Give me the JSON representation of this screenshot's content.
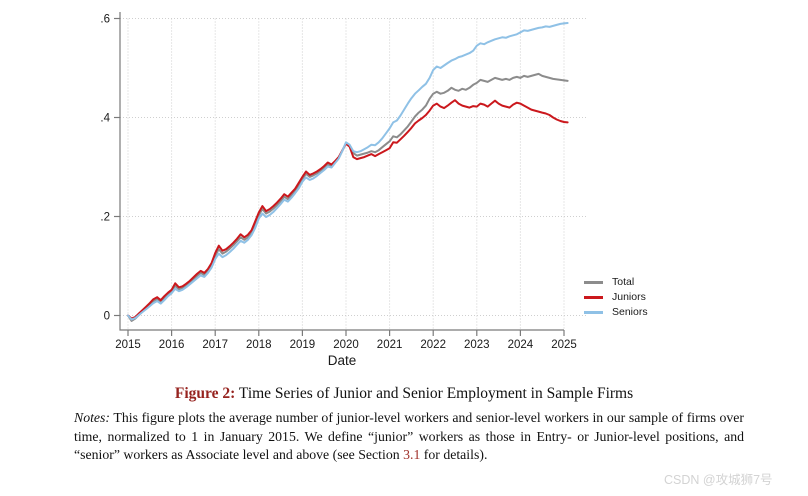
{
  "figure": {
    "caption_label": "Figure 2:",
    "caption_title": " Time Series of Junior and Senior Employment in Sample Firms",
    "notes_label": "Notes:",
    "notes_body1": " This figure plots the average number of junior-level workers and senior-level workers in our sample of firms over time, normalized to 1 in January 2015. We define “junior” workers as those in Entry- or Junior-level positions, and “senior” workers as Associate level and above (see Section ",
    "notes_link": "3.1",
    "notes_body2": " for details)."
  },
  "watermark": {
    "text": "CSDN @攻城狮7号"
  },
  "chart_data": {
    "type": "line",
    "title": "",
    "xlabel": "Date",
    "ylabel": "",
    "x_unit": "monthly",
    "x_start": "2015-01",
    "x_end": "2025-02",
    "x_tick_labels": [
      "2015",
      "2016",
      "2017",
      "2018",
      "2019",
      "2020",
      "2021",
      "2022",
      "2023",
      "2024",
      "2025"
    ],
    "y_tick_values": [
      0,
      0.2,
      0.4,
      0.6
    ],
    "y_tick_labels": [
      "0",
      ".2",
      ".4",
      ".6"
    ],
    "ylim": [
      -0.03,
      0.62
    ],
    "grid": "dotted",
    "legend_position": "right-middle",
    "grid_color": "#cfcfcf",
    "axis_color": "#7a7a7a",
    "series": [
      {
        "name": "Total",
        "color": "#8c8c8c",
        "values": [
          0.0,
          -0.011,
          -0.006,
          0.001,
          0.008,
          0.015,
          0.022,
          0.029,
          0.033,
          0.027,
          0.035,
          0.043,
          0.049,
          0.06,
          0.053,
          0.056,
          0.061,
          0.067,
          0.073,
          0.08,
          0.086,
          0.082,
          0.09,
          0.101,
          0.121,
          0.134,
          0.125,
          0.129,
          0.135,
          0.142,
          0.15,
          0.158,
          0.153,
          0.158,
          0.168,
          0.184,
          0.203,
          0.215,
          0.206,
          0.21,
          0.216,
          0.223,
          0.231,
          0.24,
          0.235,
          0.243,
          0.252,
          0.263,
          0.276,
          0.286,
          0.28,
          0.283,
          0.287,
          0.292,
          0.298,
          0.305,
          0.302,
          0.31,
          0.318,
          0.333,
          0.348,
          0.342,
          0.328,
          0.323,
          0.325,
          0.327,
          0.329,
          0.332,
          0.33,
          0.334,
          0.34,
          0.346,
          0.352,
          0.362,
          0.36,
          0.366,
          0.374,
          0.382,
          0.392,
          0.402,
          0.41,
          0.416,
          0.424,
          0.438,
          0.448,
          0.452,
          0.448,
          0.45,
          0.454,
          0.46,
          0.456,
          0.454,
          0.458,
          0.456,
          0.46,
          0.466,
          0.47,
          0.476,
          0.474,
          0.472,
          0.476,
          0.48,
          0.478,
          0.476,
          0.478,
          0.476,
          0.48,
          0.482,
          0.48,
          0.484,
          0.482,
          0.484,
          0.486,
          0.488,
          0.484,
          0.482,
          0.48,
          0.478,
          0.477,
          0.476,
          0.475,
          0.474
        ]
      },
      {
        "name": "Juniors",
        "color": "#cb181d",
        "values": [
          0.0,
          -0.006,
          -0.003,
          0.004,
          0.011,
          0.018,
          0.025,
          0.033,
          0.037,
          0.031,
          0.039,
          0.046,
          0.052,
          0.065,
          0.057,
          0.059,
          0.064,
          0.07,
          0.077,
          0.084,
          0.09,
          0.086,
          0.094,
          0.106,
          0.126,
          0.141,
          0.131,
          0.134,
          0.14,
          0.147,
          0.155,
          0.164,
          0.158,
          0.163,
          0.172,
          0.19,
          0.208,
          0.221,
          0.211,
          0.215,
          0.221,
          0.228,
          0.236,
          0.245,
          0.24,
          0.248,
          0.256,
          0.268,
          0.28,
          0.291,
          0.284,
          0.287,
          0.291,
          0.296,
          0.302,
          0.309,
          0.305,
          0.312,
          0.32,
          0.334,
          0.347,
          0.341,
          0.32,
          0.316,
          0.318,
          0.32,
          0.323,
          0.326,
          0.322,
          0.326,
          0.33,
          0.334,
          0.338,
          0.35,
          0.349,
          0.356,
          0.363,
          0.371,
          0.379,
          0.388,
          0.394,
          0.399,
          0.405,
          0.414,
          0.424,
          0.428,
          0.422,
          0.419,
          0.424,
          0.43,
          0.435,
          0.428,
          0.424,
          0.422,
          0.42,
          0.423,
          0.422,
          0.428,
          0.426,
          0.422,
          0.428,
          0.434,
          0.428,
          0.424,
          0.422,
          0.42,
          0.426,
          0.43,
          0.428,
          0.424,
          0.42,
          0.416,
          0.414,
          0.412,
          0.41,
          0.408,
          0.405,
          0.4,
          0.396,
          0.393,
          0.391,
          0.39
        ]
      },
      {
        "name": "Seniors",
        "color": "#8fc1e6",
        "values": [
          0.0,
          -0.008,
          -0.005,
          0.001,
          0.007,
          0.013,
          0.019,
          0.025,
          0.029,
          0.024,
          0.031,
          0.039,
          0.045,
          0.054,
          0.049,
          0.052,
          0.057,
          0.063,
          0.069,
          0.075,
          0.081,
          0.078,
          0.086,
          0.097,
          0.114,
          0.125,
          0.118,
          0.122,
          0.128,
          0.135,
          0.143,
          0.151,
          0.147,
          0.153,
          0.162,
          0.177,
          0.196,
          0.206,
          0.199,
          0.203,
          0.209,
          0.217,
          0.225,
          0.234,
          0.23,
          0.238,
          0.247,
          0.257,
          0.27,
          0.279,
          0.274,
          0.277,
          0.282,
          0.288,
          0.294,
          0.301,
          0.299,
          0.308,
          0.317,
          0.333,
          0.35,
          0.345,
          0.332,
          0.33,
          0.332,
          0.336,
          0.34,
          0.345,
          0.344,
          0.35,
          0.358,
          0.368,
          0.378,
          0.39,
          0.394,
          0.404,
          0.416,
          0.428,
          0.439,
          0.448,
          0.455,
          0.462,
          0.468,
          0.48,
          0.496,
          0.503,
          0.5,
          0.505,
          0.51,
          0.515,
          0.518,
          0.522,
          0.524,
          0.527,
          0.53,
          0.535,
          0.545,
          0.55,
          0.548,
          0.552,
          0.555,
          0.558,
          0.56,
          0.562,
          0.561,
          0.564,
          0.566,
          0.568,
          0.572,
          0.576,
          0.575,
          0.577,
          0.579,
          0.581,
          0.582,
          0.584,
          0.583,
          0.585,
          0.587,
          0.589,
          0.59,
          0.591
        ]
      }
    ]
  }
}
